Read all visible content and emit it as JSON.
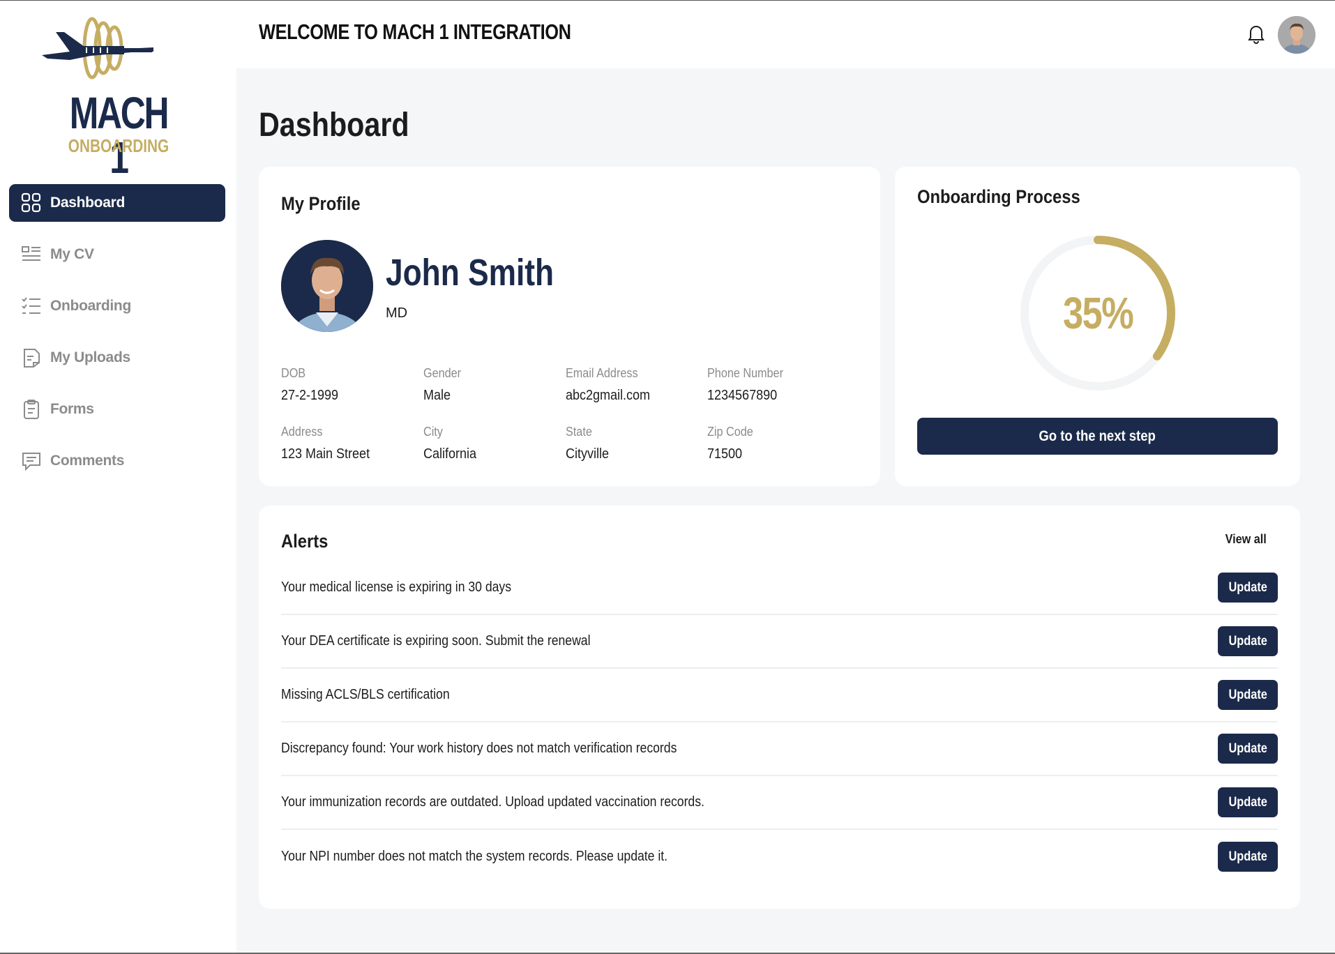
{
  "brand": {
    "title": "MACH 1",
    "subtitle": "ONBOARDING",
    "colors": {
      "navy": "#1b2a4a",
      "gold": "#c5ad62"
    }
  },
  "sidebar": {
    "items": [
      {
        "label": "Dashboard",
        "icon": "grid-icon",
        "active": true
      },
      {
        "label": "My CV",
        "icon": "cv-list-icon",
        "active": false
      },
      {
        "label": "Onboarding",
        "icon": "checklist-icon",
        "active": false
      },
      {
        "label": "My Uploads",
        "icon": "document-icon",
        "active": false
      },
      {
        "label": "Forms",
        "icon": "clipboard-icon",
        "active": false
      },
      {
        "label": "Comments",
        "icon": "comment-icon",
        "active": false
      }
    ]
  },
  "header": {
    "title": "WELCOME TO MACH 1 INTEGRATION",
    "notification_icon": "bell-icon"
  },
  "main": {
    "page_title": "Dashboard",
    "profile": {
      "heading": "My Profile",
      "name": "John Smith",
      "credential": "MD",
      "fields": [
        {
          "label": "DOB",
          "value": "27-2-1999"
        },
        {
          "label": "Gender",
          "value": "Male"
        },
        {
          "label": "Email Address",
          "value": "abc2gmail.com"
        },
        {
          "label": "Phone Number",
          "value": "1234567890"
        },
        {
          "label": "Address",
          "value": "123 Main Street"
        },
        {
          "label": "City",
          "value": "California"
        },
        {
          "label": "State",
          "value": "Cityville"
        },
        {
          "label": "Zip Code",
          "value": "71500"
        }
      ]
    },
    "onboarding": {
      "heading": "Onboarding Process",
      "progress_label": "35%",
      "progress": 0.35,
      "button_label": "Go to the next step"
    },
    "alerts": {
      "heading": "Alerts",
      "view_all": "View all",
      "action_label": "Update",
      "items": [
        "Your medical license is expiring in 30 days",
        "Your DEA certificate is expiring soon. Submit the renewal",
        "Missing ACLS/BLS certification",
        "Discrepancy found: Your work history does not match verification records",
        "Your immunization records are outdated. Upload updated vaccination records.",
        "Your NPI number does not match the system records. Please update it."
      ]
    }
  }
}
